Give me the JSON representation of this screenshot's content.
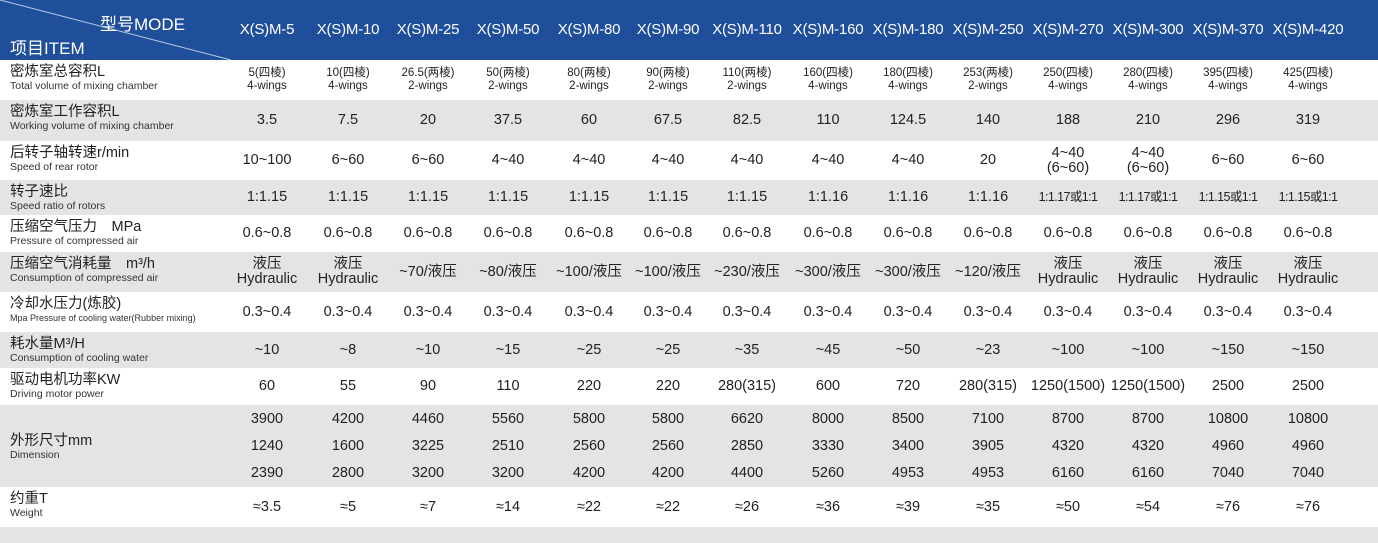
{
  "header": {
    "mode_label": "型号MODE",
    "item_label": "项目ITEM",
    "models": [
      "X(S)M-5",
      "X(S)M-10",
      "X(S)M-25",
      "X(S)M-50",
      "X(S)M-80",
      "X(S)M-90",
      "X(S)M-110",
      "X(S)M-160",
      "X(S)M-180",
      "X(S)M-250",
      "X(S)M-270",
      "X(S)M-300",
      "X(S)M-370",
      "X(S)M-420"
    ]
  },
  "rows": [
    {
      "cn": "密炼室总容积L",
      "en": "Total volume of mixing chamber",
      "values": [
        [
          "5(四棱)",
          "4-wings"
        ],
        [
          "10(四棱)",
          "4-wings"
        ],
        [
          "26.5(两棱)",
          "2-wings"
        ],
        [
          "50(两棱)",
          "2-wings"
        ],
        [
          "80(两棱)",
          "2-wings"
        ],
        [
          "90(两棱)",
          "2-wings"
        ],
        [
          "110(两棱)",
          "2-wings"
        ],
        [
          "160(四棱)",
          "4-wings"
        ],
        [
          "180(四棱)",
          "4-wings"
        ],
        [
          "253(两棱)",
          "2-wings"
        ],
        [
          "250(四棱)",
          "4-wings"
        ],
        [
          "280(四棱)",
          "4-wings"
        ],
        [
          "395(四棱)",
          "4-wings"
        ],
        [
          "425(四棱)",
          "4-wings"
        ]
      ]
    },
    {
      "cn": "密炼室工作容积L",
      "en": "Working volume of mixing chamber",
      "values": [
        [
          "3.5"
        ],
        [
          "7.5"
        ],
        [
          "20"
        ],
        [
          "37.5"
        ],
        [
          "60"
        ],
        [
          "67.5"
        ],
        [
          "82.5"
        ],
        [
          "110"
        ],
        [
          "124.5"
        ],
        [
          "140"
        ],
        [
          "188"
        ],
        [
          "210"
        ],
        [
          "296"
        ],
        [
          "319"
        ]
      ]
    },
    {
      "cn": "后转子轴转速r/min",
      "en": "Speed of rear rotor",
      "values": [
        [
          "10~100"
        ],
        [
          "6~60"
        ],
        [
          "6~60"
        ],
        [
          "4~40"
        ],
        [
          "4~40"
        ],
        [
          "4~40"
        ],
        [
          "4~40"
        ],
        [
          "4~40"
        ],
        [
          "4~40"
        ],
        [
          "20"
        ],
        [
          "4~40",
          "(6~60)"
        ],
        [
          "4~40",
          "(6~60)"
        ],
        [
          "6~60"
        ],
        [
          "6~60"
        ]
      ]
    },
    {
      "cn": "转子速比",
      "en": "Speed ratio of rotors",
      "values": [
        [
          "1:1.15"
        ],
        [
          "1:1.15"
        ],
        [
          "1:1.15"
        ],
        [
          "1:1.15"
        ],
        [
          "1:1.15"
        ],
        [
          "1:1.15"
        ],
        [
          "1:1.15"
        ],
        [
          "1:1.16"
        ],
        [
          "1:1.16"
        ],
        [
          "1:1.16"
        ],
        [
          "1:1.17或1:1"
        ],
        [
          "1:1.17或1:1"
        ],
        [
          "1:1.15或1:1"
        ],
        [
          "1:1.15或1:1"
        ]
      ]
    },
    {
      "cn": "压缩空气压力　MPa",
      "en": "Pressure of compressed air",
      "values": [
        [
          "0.6~0.8"
        ],
        [
          "0.6~0.8"
        ],
        [
          "0.6~0.8"
        ],
        [
          "0.6~0.8"
        ],
        [
          "0.6~0.8"
        ],
        [
          "0.6~0.8"
        ],
        [
          "0.6~0.8"
        ],
        [
          "0.6~0.8"
        ],
        [
          "0.6~0.8"
        ],
        [
          "0.6~0.8"
        ],
        [
          "0.6~0.8"
        ],
        [
          "0.6~0.8"
        ],
        [
          "0.6~0.8"
        ],
        [
          "0.6~0.8"
        ]
      ]
    },
    {
      "cn": "压缩空气消耗量　m³/h",
      "en": "Consumption of compressed air",
      "values": [
        [
          "液压",
          "Hydraulic"
        ],
        [
          "液压",
          "Hydraulic"
        ],
        [
          "~70/液压"
        ],
        [
          "~80/液压"
        ],
        [
          "~100/液压"
        ],
        [
          "~100/液压"
        ],
        [
          "~230/液压"
        ],
        [
          "~300/液压"
        ],
        [
          "~300/液压"
        ],
        [
          "~120/液压"
        ],
        [
          "液压",
          "Hydraulic"
        ],
        [
          "液压",
          "Hydraulic"
        ],
        [
          "液压",
          "Hydraulic"
        ],
        [
          "液压",
          "Hydraulic"
        ]
      ]
    },
    {
      "cn": "冷却水压力(炼胶)",
      "en": "Mpa Pressure of cooling water(Rubber mixing)",
      "values": [
        [
          "0.3~0.4"
        ],
        [
          "0.3~0.4"
        ],
        [
          "0.3~0.4"
        ],
        [
          "0.3~0.4"
        ],
        [
          "0.3~0.4"
        ],
        [
          "0.3~0.4"
        ],
        [
          "0.3~0.4"
        ],
        [
          "0.3~0.4"
        ],
        [
          "0.3~0.4"
        ],
        [
          "0.3~0.4"
        ],
        [
          "0.3~0.4"
        ],
        [
          "0.3~0.4"
        ],
        [
          "0.3~0.4"
        ],
        [
          "0.3~0.4"
        ]
      ]
    },
    {
      "cn": "耗水量M³/H",
      "en": "Consumption of cooling water",
      "values": [
        [
          "~10"
        ],
        [
          "~8"
        ],
        [
          "~10"
        ],
        [
          "~15"
        ],
        [
          "~25"
        ],
        [
          "~25"
        ],
        [
          "~35"
        ],
        [
          "~45"
        ],
        [
          "~50"
        ],
        [
          "~23"
        ],
        [
          "~100"
        ],
        [
          "~100"
        ],
        [
          "~150"
        ],
        [
          "~150"
        ]
      ]
    },
    {
      "cn": "驱动电机功率KW",
      "en": "Driving motor power",
      "values": [
        [
          "60"
        ],
        [
          "55"
        ],
        [
          "90"
        ],
        [
          "110"
        ],
        [
          "220"
        ],
        [
          "220"
        ],
        [
          "280(315)"
        ],
        [
          "600"
        ],
        [
          "720"
        ],
        [
          "280(315)"
        ],
        [
          "1250(1500)"
        ],
        [
          "1250(1500)"
        ],
        [
          "2500"
        ],
        [
          "2500"
        ]
      ]
    },
    {
      "cn": "外形尺寸mm",
      "en": "Dimension",
      "values": [
        [
          "3900",
          "1240",
          "2390"
        ],
        [
          "4200",
          "1600",
          "2800"
        ],
        [
          "4460",
          "3225",
          "3200"
        ],
        [
          "5560",
          "2510",
          "3200"
        ],
        [
          "5800",
          "2560",
          "4200"
        ],
        [
          "5800",
          "2560",
          "4200"
        ],
        [
          "6620",
          "2850",
          "4400"
        ],
        [
          "8000",
          "3330",
          "5260"
        ],
        [
          "8500",
          "3400",
          "4953"
        ],
        [
          "7100",
          "3905",
          "4953"
        ],
        [
          "8700",
          "4320",
          "6160"
        ],
        [
          "8700",
          "4320",
          "6160"
        ],
        [
          "10800",
          "4960",
          "7040"
        ],
        [
          "10800",
          "4960",
          "7040"
        ]
      ]
    },
    {
      "cn": "约重T",
      "en": "Weight",
      "values": [
        [
          "≈3.5"
        ],
        [
          "≈5"
        ],
        [
          "≈7"
        ],
        [
          "≈14"
        ],
        [
          "≈22"
        ],
        [
          "≈22"
        ],
        [
          "≈26"
        ],
        [
          "≈36"
        ],
        [
          "≈39"
        ],
        [
          "≈35"
        ],
        [
          "≈50"
        ],
        [
          "≈54"
        ],
        [
          "≈76"
        ],
        [
          "≈76"
        ]
      ]
    }
  ]
}
